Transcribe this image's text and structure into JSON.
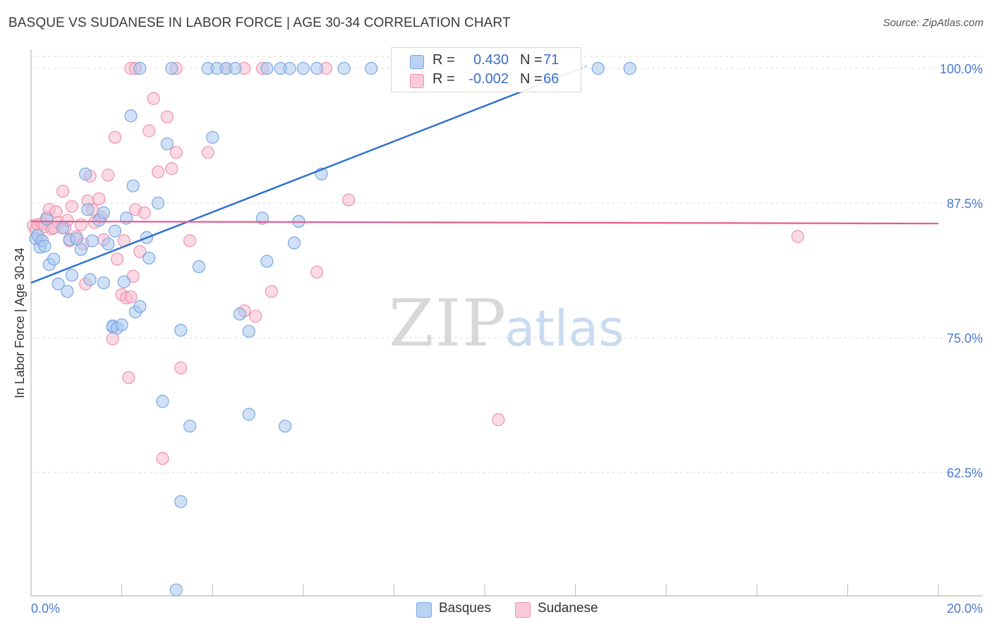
{
  "header": {
    "title": "BASQUE VS SUDANESE IN LABOR FORCE | AGE 30-34 CORRELATION CHART",
    "source": "Source: ZipAtlas.com"
  },
  "watermark": {
    "zip": "ZIP",
    "atlas": "atlas"
  },
  "legend": {
    "rows": [
      {
        "r_label": "R =",
        "r_value": "0.430",
        "n_label": "N =",
        "n_value": "71"
      },
      {
        "r_label": "R =",
        "r_value": "-0.002",
        "n_label": "N =",
        "n_value": "66"
      }
    ],
    "bottom": [
      "Basques",
      "Sudanese"
    ]
  },
  "colors": {
    "basque_fill": "#a9c8f0",
    "basque_stroke": "#7aa7e3",
    "basque_line": "#2f72d0",
    "sudanese_fill": "#f7bccd",
    "sudanese_stroke": "#ef93b0",
    "sudanese_line": "#e85a8e",
    "tick_text": "#4a7bd0",
    "grid": "#dddddd"
  },
  "chart_data": {
    "type": "scatter",
    "title": "BASQUE VS SUDANESE IN LABOR FORCE | AGE 30-34 CORRELATION CHART",
    "xlabel": "",
    "ylabel": "In Labor Force | Age 30-34",
    "xlim": [
      0.0,
      20.0
    ],
    "ylim": [
      51.0,
      101.0
    ],
    "x_tick_labels": [
      "0.0%",
      "20.0%"
    ],
    "y_ticks": [
      62.5,
      75.0,
      87.5,
      100.0
    ],
    "y_tick_labels": [
      "62.5%",
      "75.0%",
      "87.5%",
      "100.0%"
    ],
    "grid": true,
    "series": [
      {
        "name": "Basques",
        "r": 0.43,
        "n": 71,
        "trend": {
          "x": [
            0.0,
            12.1
          ],
          "y": [
            80.1,
            99.96
          ]
        },
        "trend_dashed": {
          "x": [
            12.1,
            12.3
          ],
          "y": [
            99.96,
            100.3
          ]
        },
        "points": [
          [
            0.1,
            84.2
          ],
          [
            0.15,
            84.5
          ],
          [
            0.2,
            83.4
          ],
          [
            0.25,
            84.0
          ],
          [
            0.3,
            83.5
          ],
          [
            0.35,
            86.0
          ],
          [
            0.4,
            81.8
          ],
          [
            0.5,
            82.3
          ],
          [
            0.6,
            80.0
          ],
          [
            0.7,
            85.2
          ],
          [
            0.8,
            79.3
          ],
          [
            0.85,
            84.1
          ],
          [
            0.9,
            80.8
          ],
          [
            1.0,
            84.2
          ],
          [
            1.1,
            83.2
          ],
          [
            1.2,
            90.2
          ],
          [
            1.25,
            86.9
          ],
          [
            1.3,
            80.4
          ],
          [
            1.35,
            84.0
          ],
          [
            1.5,
            85.9
          ],
          [
            1.6,
            86.6
          ],
          [
            1.6,
            80.1
          ],
          [
            1.7,
            83.7
          ],
          [
            1.8,
            76.0
          ],
          [
            1.8,
            76.1
          ],
          [
            1.85,
            84.9
          ],
          [
            1.9,
            75.9
          ],
          [
            2.0,
            76.2
          ],
          [
            2.05,
            80.2
          ],
          [
            2.1,
            86.1
          ],
          [
            2.2,
            95.6
          ],
          [
            2.25,
            89.1
          ],
          [
            2.3,
            77.4
          ],
          [
            2.4,
            77.9
          ],
          [
            2.55,
            84.3
          ],
          [
            2.6,
            82.4
          ],
          [
            2.8,
            87.5
          ],
          [
            2.9,
            69.1
          ],
          [
            3.0,
            93.0
          ],
          [
            3.2,
            51.6
          ],
          [
            3.3,
            75.7
          ],
          [
            3.3,
            59.8
          ],
          [
            3.5,
            66.8
          ],
          [
            3.7,
            81.6
          ],
          [
            4.0,
            93.6
          ],
          [
            4.6,
            77.2
          ],
          [
            4.8,
            75.6
          ],
          [
            4.8,
            67.9
          ],
          [
            5.1,
            86.1
          ],
          [
            5.2,
            82.1
          ],
          [
            5.6,
            66.8
          ],
          [
            5.9,
            85.8
          ],
          [
            5.8,
            83.8
          ],
          [
            6.4,
            90.2
          ],
          [
            2.4,
            100.0
          ],
          [
            3.1,
            100.0
          ],
          [
            3.9,
            100.0
          ],
          [
            4.1,
            100.0
          ],
          [
            4.3,
            100.0
          ],
          [
            4.5,
            100.0
          ],
          [
            5.2,
            100.0
          ],
          [
            5.5,
            100.0
          ],
          [
            5.7,
            100.0
          ],
          [
            6.0,
            100.0
          ],
          [
            6.3,
            100.0
          ],
          [
            6.9,
            100.0
          ],
          [
            7.5,
            100.0
          ],
          [
            8.3,
            100.0
          ],
          [
            10.1,
            100.0
          ],
          [
            12.5,
            100.0
          ],
          [
            13.2,
            100.0
          ]
        ]
      },
      {
        "name": "Sudanese",
        "r": -0.002,
        "n": 66,
        "trend": {
          "x": [
            0.0,
            20.0
          ],
          "y": [
            85.8,
            85.6
          ]
        },
        "points": [
          [
            0.05,
            85.4
          ],
          [
            0.1,
            85.0
          ],
          [
            0.15,
            85.5
          ],
          [
            0.2,
            84.1
          ],
          [
            0.25,
            85.6
          ],
          [
            0.3,
            85.3
          ],
          [
            0.35,
            86.2
          ],
          [
            0.4,
            86.9
          ],
          [
            0.45,
            85.1
          ],
          [
            0.5,
            85.2
          ],
          [
            0.55,
            86.7
          ],
          [
            0.6,
            85.7
          ],
          [
            0.7,
            88.6
          ],
          [
            0.75,
            85.2
          ],
          [
            0.8,
            85.9
          ],
          [
            0.85,
            84.0
          ],
          [
            0.9,
            87.2
          ],
          [
            1.0,
            84.4
          ],
          [
            1.1,
            85.5
          ],
          [
            1.15,
            83.7
          ],
          [
            1.2,
            80.0
          ],
          [
            1.25,
            87.7
          ],
          [
            1.3,
            90.0
          ],
          [
            1.35,
            86.9
          ],
          [
            1.4,
            85.7
          ],
          [
            1.5,
            87.9
          ],
          [
            1.55,
            86.2
          ],
          [
            1.6,
            84.1
          ],
          [
            1.7,
            90.1
          ],
          [
            1.8,
            74.9
          ],
          [
            1.85,
            93.6
          ],
          [
            1.9,
            82.3
          ],
          [
            2.0,
            79.0
          ],
          [
            2.05,
            84.0
          ],
          [
            2.1,
            78.7
          ],
          [
            2.15,
            71.3
          ],
          [
            2.2,
            78.8
          ],
          [
            2.25,
            80.7
          ],
          [
            2.3,
            86.9
          ],
          [
            2.4,
            83.0
          ],
          [
            2.5,
            86.6
          ],
          [
            2.6,
            94.2
          ],
          [
            2.7,
            97.2
          ],
          [
            2.8,
            90.4
          ],
          [
            2.9,
            63.8
          ],
          [
            3.0,
            95.5
          ],
          [
            3.1,
            90.7
          ],
          [
            3.2,
            92.2
          ],
          [
            3.3,
            72.2
          ],
          [
            3.5,
            84.0
          ],
          [
            3.9,
            92.2
          ],
          [
            4.7,
            77.5
          ],
          [
            4.95,
            77.0
          ],
          [
            5.3,
            79.3
          ],
          [
            6.3,
            81.1
          ],
          [
            7.0,
            87.8
          ],
          [
            10.3,
            67.4
          ],
          [
            16.9,
            84.4
          ],
          [
            2.2,
            100.0
          ],
          [
            3.2,
            100.0
          ],
          [
            4.3,
            100.0
          ],
          [
            4.7,
            100.0
          ],
          [
            5.1,
            100.0
          ],
          [
            6.5,
            100.0
          ],
          [
            8.7,
            100.0
          ],
          [
            2.3,
            100.0
          ]
        ]
      }
    ]
  }
}
